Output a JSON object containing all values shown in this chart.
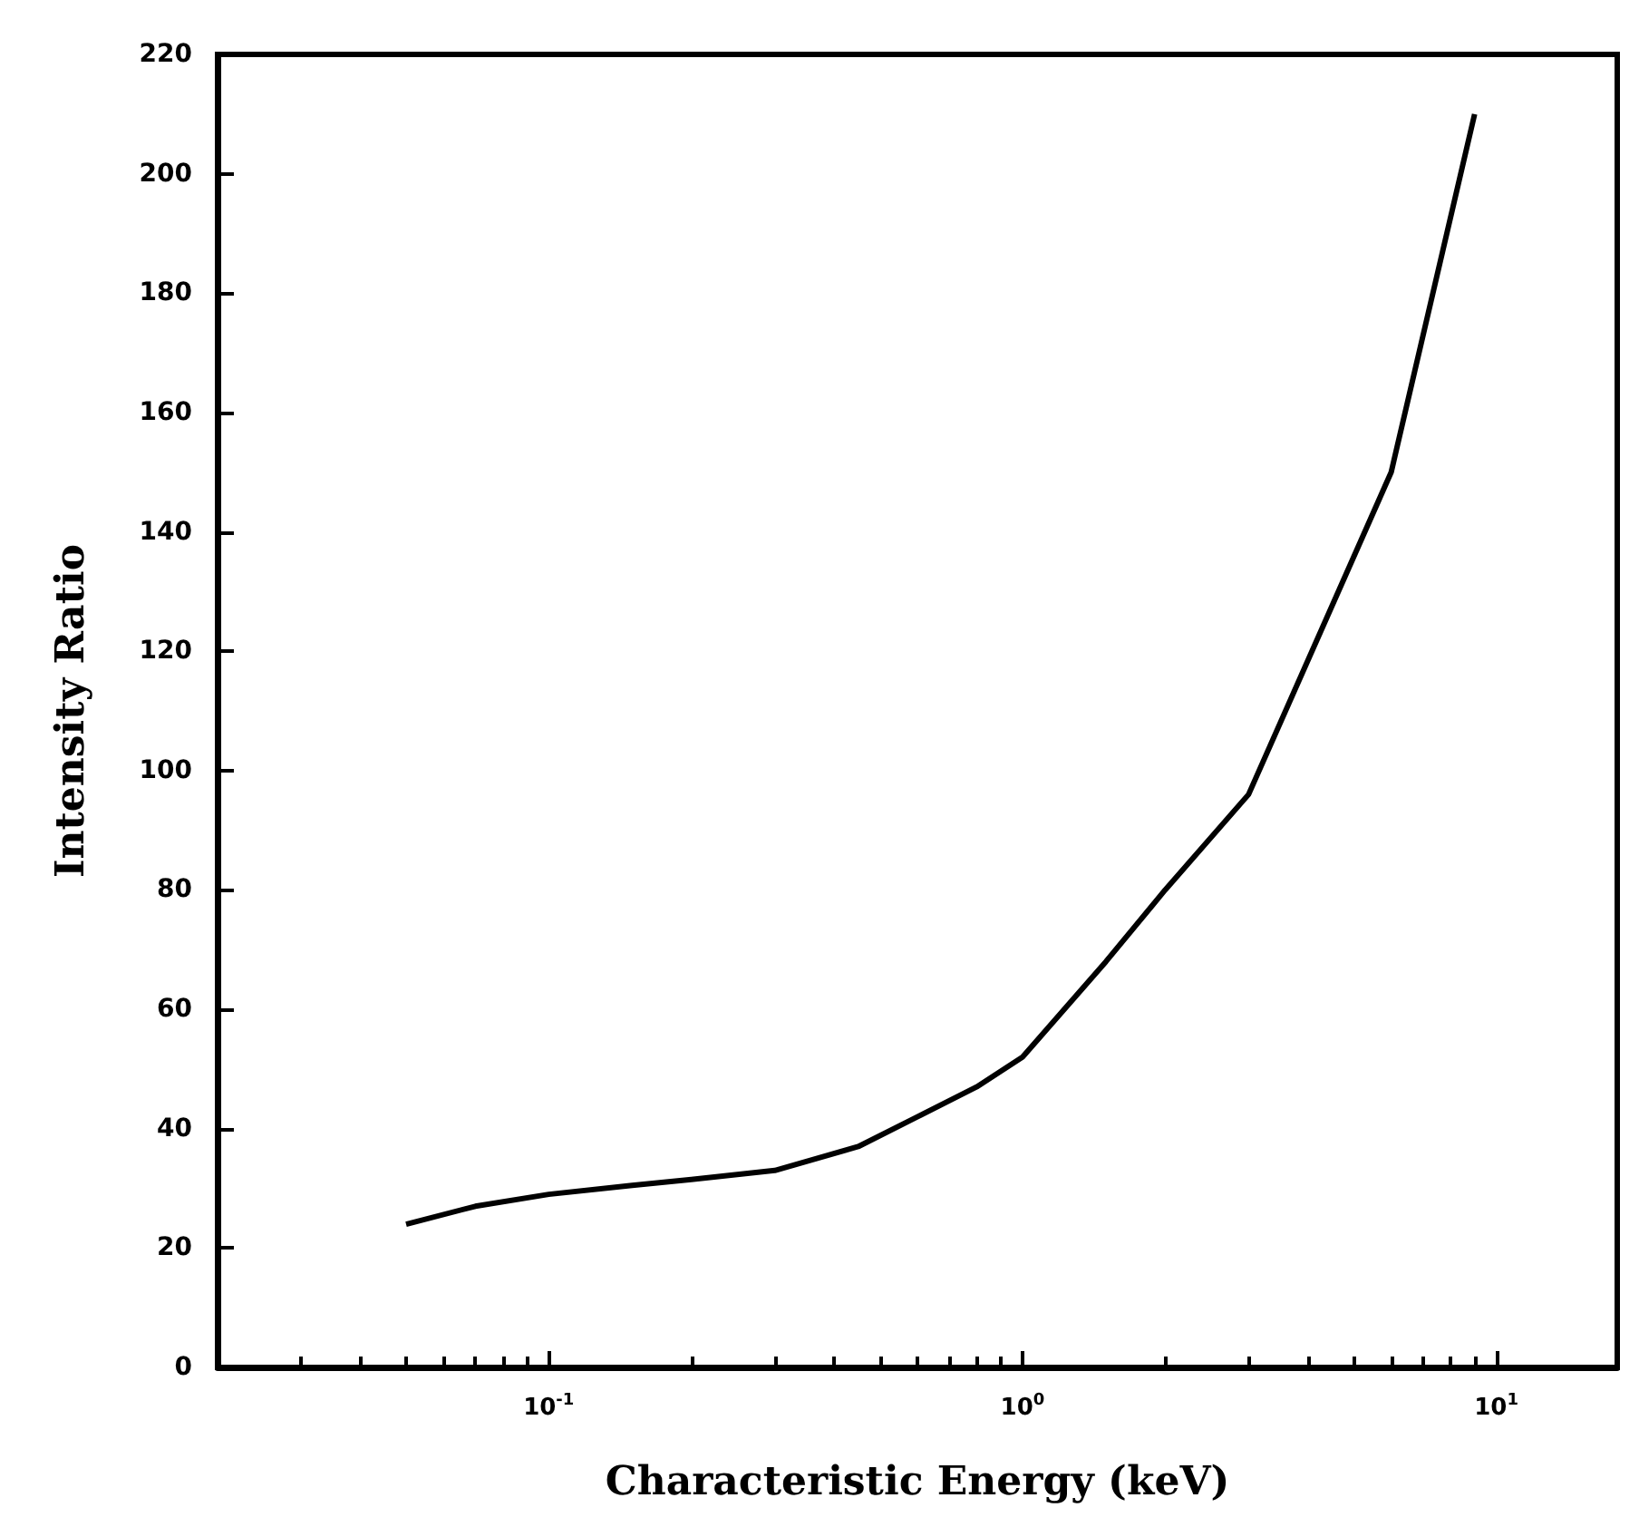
{
  "chart_data": {
    "type": "line",
    "xlabel": "Characteristic Energy (keV)",
    "ylabel": "Intensity Ratio",
    "log": "x",
    "x": [
      0.05,
      0.07,
      0.1,
      0.15,
      0.2,
      0.3,
      0.45,
      0.6,
      0.8,
      1.0,
      1.5,
      2,
      3,
      6,
      9
    ],
    "values": [
      24,
      27,
      29,
      30.5,
      31.5,
      33,
      37,
      42,
      47,
      52,
      68,
      80,
      96,
      150,
      210
    ],
    "color": "#000000",
    "xlim": [
      0.02,
      18
    ],
    "ylim": [
      0,
      220
    ],
    "xticks": [
      {
        "value": 0.1,
        "label": "10$^{-1}$"
      },
      {
        "value": 1,
        "label": "10$^{0}$"
      },
      {
        "value": 10,
        "label": "10$^{1}$"
      }
    ],
    "yticks": [
      0,
      20,
      40,
      60,
      80,
      100,
      120,
      140,
      160,
      180,
      200,
      220
    ],
    "grid": false,
    "marker": "none",
    "line_style": "solid"
  }
}
